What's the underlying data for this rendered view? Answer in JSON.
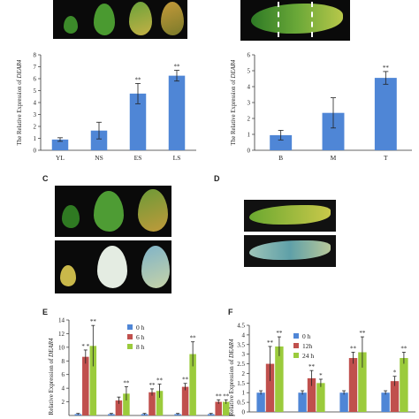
{
  "panels": {
    "c_letter": "C",
    "d_letter": "D",
    "e_letter": "E",
    "f_letter": "F"
  },
  "colors": {
    "bar_blue": "#4f86d6",
    "bar_red": "#c0504d",
    "bar_green": "#9bcb3c",
    "error": "#222222",
    "leaf_green": "#3f8f2c",
    "leaf_yellow": "#c9b84a",
    "leaf_white": "#e6efe4",
    "photo_bg": "#0a0a0a"
  },
  "chart_data": [
    {
      "id": "A",
      "type": "bar",
      "ylabel_prefix": "The Relative Expression of ",
      "ylabel_gene": "DEAR4",
      "categories": [
        "YL",
        "NS",
        "ES",
        "LS"
      ],
      "values": [
        0.9,
        1.65,
        4.75,
        6.25
      ],
      "errors": [
        0.15,
        0.7,
        0.85,
        0.45
      ],
      "significance": [
        "",
        "",
        "**",
        "**"
      ],
      "ylim": [
        0,
        8
      ],
      "yticks": [
        0,
        1,
        2,
        3,
        4,
        5,
        6,
        7,
        8
      ]
    },
    {
      "id": "B",
      "type": "bar",
      "ylabel_prefix": "The Relative Expression of ",
      "ylabel_gene": "DEAR4",
      "categories": [
        "B",
        "M",
        "T"
      ],
      "values": [
        0.95,
        2.35,
        4.55
      ],
      "errors": [
        0.3,
        0.95,
        0.4
      ],
      "significance": [
        "",
        "",
        "**"
      ],
      "ylim": [
        0,
        6
      ],
      "yticks": [
        0,
        1,
        2,
        3,
        4,
        5,
        6
      ]
    },
    {
      "id": "E",
      "type": "bar",
      "ylabel_prefix": "Relative Expression of ",
      "ylabel_gene": "DEAR4",
      "series": [
        {
          "name": "0 h",
          "values": [
            0.2,
            0.2,
            0.2,
            0.2,
            0.2
          ]
        },
        {
          "name": "6 h",
          "values": [
            8.6,
            2.2,
            3.4,
            4.2,
            2.0
          ]
        },
        {
          "name": "8 h",
          "values": [
            10.2,
            3.2,
            3.6,
            9.0,
            2.0
          ]
        }
      ],
      "errors": [
        [
          0.1,
          0.1,
          0.1,
          0.1,
          0.1
        ],
        [
          1.0,
          0.5,
          0.5,
          0.5,
          0.3
        ],
        [
          3.0,
          1.0,
          1.0,
          1.8,
          0.3
        ]
      ],
      "significance": [
        [
          "",
          "",
          "",
          "",
          ""
        ],
        [
          "* *",
          "",
          "**",
          "**",
          "**"
        ],
        [
          "**",
          "**",
          "**",
          "**",
          "**"
        ]
      ],
      "ylim": [
        0,
        14
      ],
      "yticks": [
        2,
        4,
        6,
        8,
        10,
        12,
        14
      ]
    },
    {
      "id": "F",
      "type": "bar",
      "ylabel_prefix": "Relative Expression of ",
      "ylabel_gene": "DEAR4",
      "series": [
        {
          "name": "0 h",
          "values": [
            1.0,
            1.0,
            1.0,
            1.0
          ]
        },
        {
          "name": "12h",
          "values": [
            2.5,
            1.75,
            2.8,
            1.6
          ]
        },
        {
          "name": "24 h",
          "values": [
            3.4,
            1.5,
            3.1,
            2.8
          ]
        }
      ],
      "errors": [
        [
          0.1,
          0.1,
          0.1,
          0.1
        ],
        [
          0.9,
          0.4,
          0.3,
          0.25
        ],
        [
          0.5,
          0.2,
          0.8,
          0.3
        ]
      ],
      "significance": [
        [
          "",
          "",
          "",
          ""
        ],
        [
          "**",
          "**",
          "**",
          "*"
        ],
        [
          "**",
          "*",
          "**",
          "**"
        ]
      ],
      "ylim": [
        0,
        4.5
      ],
      "yticks": [
        0,
        0.5,
        1,
        1.5,
        2,
        2.5,
        3,
        3.5,
        4,
        4.5
      ]
    }
  ]
}
